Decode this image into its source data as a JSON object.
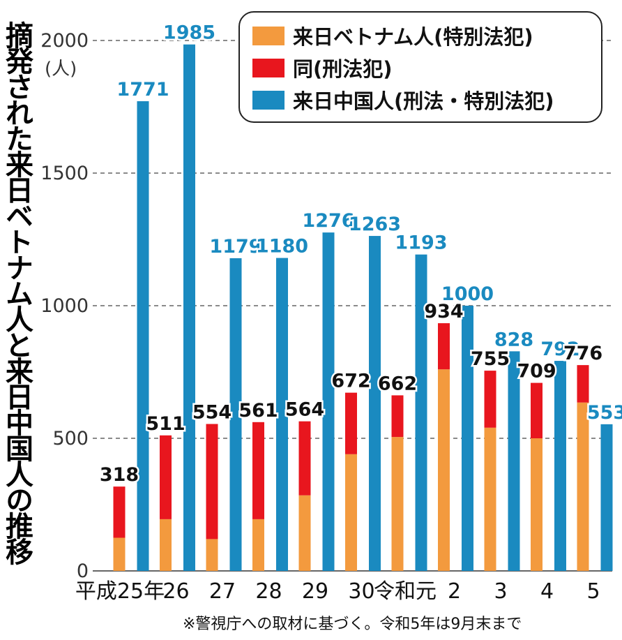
{
  "title": "摘発された来日ベトナム人と来日中国人の推移",
  "unit": "(人)",
  "footnote": "※警視庁への取材に基づく。令和5年は9月末まで",
  "legend": [
    {
      "label": "来日ベトナム人(特別法犯)",
      "color": "#f39a3e"
    },
    {
      "label": "同(刑法犯)",
      "color": "#e8161e"
    },
    {
      "label": "来日中国人(刑法・特別法犯)",
      "color": "#1a8ac0"
    }
  ],
  "chart_data": {
    "type": "bar",
    "title": "摘発された来日ベトナム人と来日中国人の推移",
    "ylabel": "(人)",
    "ylim": [
      0,
      2000
    ],
    "yticks": [
      0,
      500,
      1000,
      1500,
      2000
    ],
    "categories": [
      "平成25年",
      "26",
      "27",
      "28",
      "29",
      "30",
      "令和元",
      "2",
      "3",
      "4",
      "5"
    ],
    "series": [
      {
        "name": "来日ベトナム人(特別法犯)",
        "stack": "vietnam",
        "color": "#f39a3e",
        "values": [
          125,
          195,
          120,
          195,
          285,
          440,
          505,
          760,
          540,
          500,
          635
        ]
      },
      {
        "name": "同(刑法犯)",
        "stack": "vietnam",
        "color": "#e8161e",
        "values": [
          193,
          316,
          434,
          366,
          279,
          232,
          157,
          174,
          215,
          209,
          141
        ]
      },
      {
        "name": "来日中国人(刑法・特別法犯)",
        "stack": "china",
        "color": "#1a8ac0",
        "values": [
          1771,
          1985,
          1179,
          1180,
          1276,
          1263,
          1193,
          1000,
          828,
          792,
          553
        ]
      }
    ],
    "vietnam_totals": [
      318,
      511,
      554,
      561,
      564,
      672,
      662,
      934,
      755,
      709,
      776
    ],
    "value_label_colors": {
      "vietnam": "#111111",
      "china": "#1a8ac0"
    },
    "grid": "dashed"
  }
}
